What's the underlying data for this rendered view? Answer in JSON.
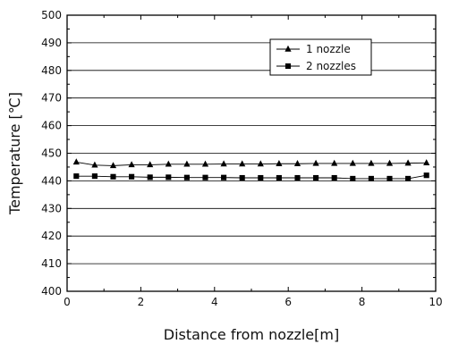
{
  "chart_data": {
    "type": "line",
    "title": "",
    "xlabel": "Distance from nozzle[m]",
    "ylabel": "Temperature [℃]",
    "xlim": [
      0,
      10
    ],
    "ylim": [
      400,
      500
    ],
    "x_ticks": [
      "0",
      "2",
      "4",
      "6",
      "8",
      "10"
    ],
    "y_ticks": [
      "400",
      "410",
      "420",
      "430",
      "440",
      "450",
      "460",
      "470",
      "480",
      "490",
      "500"
    ],
    "grid": "horizontal",
    "legend_position": "top-right",
    "x": [
      0.25,
      0.75,
      1.25,
      1.75,
      2.25,
      2.75,
      3.25,
      3.75,
      4.25,
      4.75,
      5.25,
      5.75,
      6.25,
      6.75,
      7.25,
      7.75,
      8.25,
      8.75,
      9.25,
      9.75
    ],
    "series": [
      {
        "name": "1 nozzle",
        "marker": "triangle",
        "values": [
          446.8,
          445.7,
          445.5,
          445.8,
          445.8,
          446.0,
          446.0,
          446.0,
          446.1,
          446.1,
          446.1,
          446.2,
          446.2,
          446.3,
          446.3,
          446.3,
          446.3,
          446.3,
          446.4,
          446.5
        ]
      },
      {
        "name": "2 nozzles",
        "marker": "square",
        "values": [
          441.7,
          441.7,
          441.5,
          441.5,
          441.3,
          441.3,
          441.2,
          441.2,
          441.2,
          441.1,
          441.1,
          441.1,
          441.1,
          441.1,
          441.1,
          440.8,
          440.8,
          440.8,
          440.8,
          442.0
        ]
      }
    ]
  }
}
